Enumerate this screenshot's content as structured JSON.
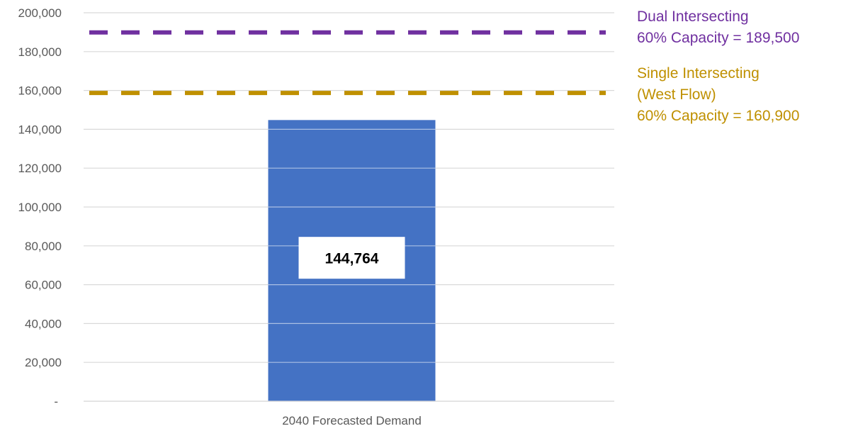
{
  "chart_data": {
    "type": "bar",
    "categories": [
      "2040 Forecasted Demand"
    ],
    "series": [
      {
        "values": [
          144764
        ],
        "color": "#4472C4"
      }
    ],
    "data_labels": [
      "144,764"
    ],
    "ylim": [
      0,
      200000
    ],
    "y_ticks": [
      0,
      20000,
      40000,
      60000,
      80000,
      100000,
      120000,
      140000,
      160000,
      180000,
      200000
    ],
    "y_tick_labels": [
      "-",
      "20,000",
      "40,000",
      "60,000",
      "80,000",
      "100,000",
      "120,000",
      "140,000",
      "160,000",
      "180,000",
      "200,000"
    ],
    "grid": true,
    "reference_lines": [
      {
        "value": 189500,
        "style": "dashed",
        "color": "#7030A0",
        "label_lines": [
          "Dual Intersecting",
          "60% Capacity = 189,500"
        ]
      },
      {
        "value": 160900,
        "style": "dashed",
        "color": "#BF9000",
        "label_lines": [
          "Single Intersecting",
          "(West Flow)",
          "60% Capacity = 160,900"
        ]
      }
    ]
  }
}
